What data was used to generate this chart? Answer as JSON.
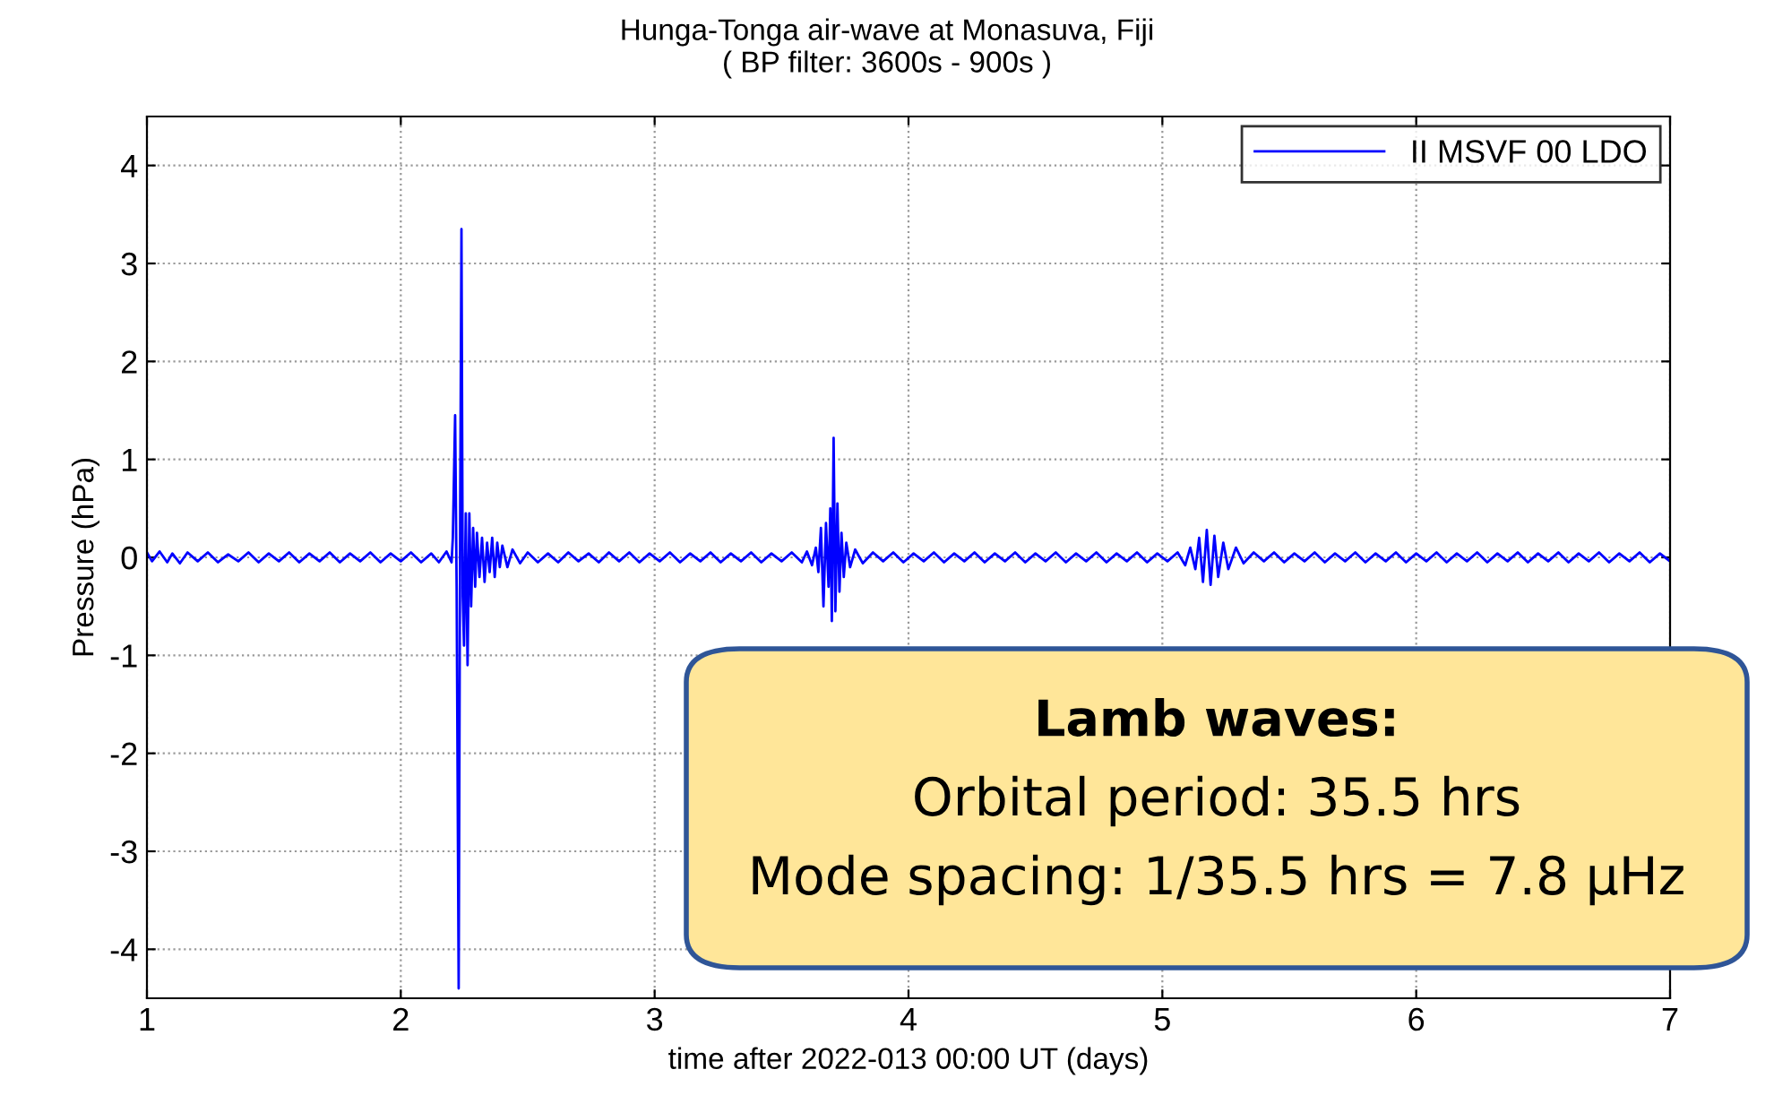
{
  "chart_data": {
    "type": "line",
    "title": "Hunga-Tonga air-wave at Monasuva, Fiji",
    "subtitle": "( BP filter: 3600s - 900s )",
    "xlabel": "time after 2022-013 00:00 UT (days)",
    "ylabel": "Pressure (hPa)",
    "xlim": [
      1,
      7
    ],
    "ylim": [
      -4.5,
      4.5
    ],
    "xticks": [
      1,
      2,
      3,
      4,
      5,
      6,
      7
    ],
    "yticks": [
      -4,
      -3,
      -2,
      -1,
      0,
      1,
      2,
      3,
      4
    ],
    "grid": true,
    "legend": "top right",
    "line_style": "solid",
    "marker": "none",
    "annotations": [
      "Lamb waves:",
      "Orbital period: 35.5 hrs",
      "Mode spacing: 1/35.5 hrs = 7.8 μHz"
    ],
    "series": [
      {
        "name": "II MSVF 00 LDO",
        "color": "#0000ff",
        "x": [
          1.0,
          1.02,
          1.05,
          1.08,
          1.1,
          1.13,
          1.16,
          1.2,
          1.24,
          1.28,
          1.32,
          1.36,
          1.4,
          1.44,
          1.48,
          1.52,
          1.56,
          1.6,
          1.64,
          1.68,
          1.72,
          1.76,
          1.8,
          1.84,
          1.88,
          1.92,
          1.96,
          2.0,
          2.04,
          2.08,
          2.12,
          2.15,
          2.18,
          2.2,
          2.205,
          2.214,
          2.22,
          2.228,
          2.234,
          2.239,
          2.244,
          2.249,
          2.256,
          2.263,
          2.27,
          2.277,
          2.285,
          2.293,
          2.3,
          2.31,
          2.32,
          2.33,
          2.34,
          2.35,
          2.36,
          2.37,
          2.38,
          2.39,
          2.4,
          2.42,
          2.44,
          2.47,
          2.5,
          2.54,
          2.58,
          2.62,
          2.66,
          2.7,
          2.74,
          2.78,
          2.82,
          2.86,
          2.9,
          2.94,
          2.98,
          3.02,
          3.06,
          3.1,
          3.14,
          3.18,
          3.22,
          3.26,
          3.3,
          3.34,
          3.38,
          3.42,
          3.46,
          3.5,
          3.54,
          3.58,
          3.6,
          3.62,
          3.635,
          3.645,
          3.655,
          3.665,
          3.675,
          3.685,
          3.692,
          3.698,
          3.705,
          3.712,
          3.72,
          3.728,
          3.736,
          3.745,
          3.755,
          3.77,
          3.79,
          3.82,
          3.86,
          3.9,
          3.94,
          3.98,
          4.02,
          4.06,
          4.1,
          4.14,
          4.18,
          4.22,
          4.26,
          4.3,
          4.34,
          4.38,
          4.42,
          4.46,
          4.5,
          4.54,
          4.58,
          4.62,
          4.66,
          4.7,
          4.74,
          4.78,
          4.82,
          4.86,
          4.9,
          4.94,
          4.98,
          5.02,
          5.06,
          5.09,
          5.11,
          5.13,
          5.145,
          5.16,
          5.175,
          5.19,
          5.205,
          5.22,
          5.24,
          5.26,
          5.29,
          5.32,
          5.36,
          5.4,
          5.44,
          5.48,
          5.52,
          5.56,
          5.6,
          5.64,
          5.68,
          5.72,
          5.76,
          5.8,
          5.84,
          5.88,
          5.92,
          5.96,
          6.0,
          6.04,
          6.08,
          6.12,
          6.16,
          6.2,
          6.24,
          6.28,
          6.32,
          6.36,
          6.4,
          6.44,
          6.48,
          6.52,
          6.56,
          6.6,
          6.64,
          6.68,
          6.72,
          6.76,
          6.8,
          6.84,
          6.88,
          6.92,
          6.96,
          7.0
        ],
        "values": [
          0.05,
          -0.04,
          0.06,
          -0.05,
          0.04,
          -0.06,
          0.05,
          -0.04,
          0.05,
          -0.05,
          0.03,
          -0.04,
          0.05,
          -0.05,
          0.04,
          -0.04,
          0.05,
          -0.05,
          0.04,
          -0.04,
          0.05,
          -0.05,
          0.04,
          -0.04,
          0.05,
          -0.05,
          0.04,
          -0.04,
          0.05,
          -0.05,
          0.04,
          -0.05,
          0.06,
          -0.05,
          0.2,
          1.45,
          -0.3,
          -4.4,
          0.5,
          3.35,
          -0.4,
          -0.9,
          0.45,
          -1.1,
          0.45,
          -0.5,
          0.3,
          -0.3,
          0.25,
          -0.2,
          0.2,
          -0.25,
          0.15,
          -0.15,
          0.2,
          -0.2,
          0.15,
          -0.1,
          0.12,
          -0.1,
          0.08,
          -0.06,
          0.05,
          -0.05,
          0.04,
          -0.05,
          0.05,
          -0.04,
          0.04,
          -0.05,
          0.05,
          -0.04,
          0.05,
          -0.05,
          0.04,
          -0.04,
          0.05,
          -0.05,
          0.04,
          -0.04,
          0.05,
          -0.05,
          0.04,
          -0.04,
          0.05,
          -0.05,
          0.04,
          -0.04,
          0.05,
          -0.05,
          0.06,
          -0.08,
          0.1,
          -0.15,
          0.3,
          -0.5,
          0.35,
          -0.3,
          0.5,
          -0.65,
          1.22,
          -0.55,
          0.55,
          -0.35,
          0.25,
          -0.2,
          0.15,
          -0.1,
          0.08,
          -0.06,
          0.05,
          -0.04,
          0.05,
          -0.05,
          0.04,
          -0.04,
          0.05,
          -0.05,
          0.04,
          -0.04,
          0.05,
          -0.05,
          0.04,
          -0.04,
          0.05,
          -0.05,
          0.04,
          -0.04,
          0.05,
          -0.05,
          0.04,
          -0.04,
          0.05,
          -0.05,
          0.04,
          -0.04,
          0.05,
          -0.05,
          0.04,
          -0.04,
          0.05,
          -0.08,
          0.1,
          -0.12,
          0.2,
          -0.25,
          0.28,
          -0.28,
          0.22,
          -0.2,
          0.15,
          -0.12,
          0.1,
          -0.06,
          0.05,
          -0.04,
          0.05,
          -0.05,
          0.04,
          -0.04,
          0.05,
          -0.05,
          0.04,
          -0.04,
          0.05,
          -0.05,
          0.04,
          -0.04,
          0.05,
          -0.05,
          0.04,
          -0.04,
          0.05,
          -0.05,
          0.04,
          -0.04,
          0.05,
          -0.05,
          0.04,
          -0.04,
          0.05,
          -0.05,
          0.04,
          -0.04,
          0.05,
          -0.05,
          0.04,
          -0.04,
          0.05,
          -0.05,
          0.04,
          -0.04,
          0.05,
          -0.05,
          0.04,
          -0.04
        ]
      }
    ]
  }
}
